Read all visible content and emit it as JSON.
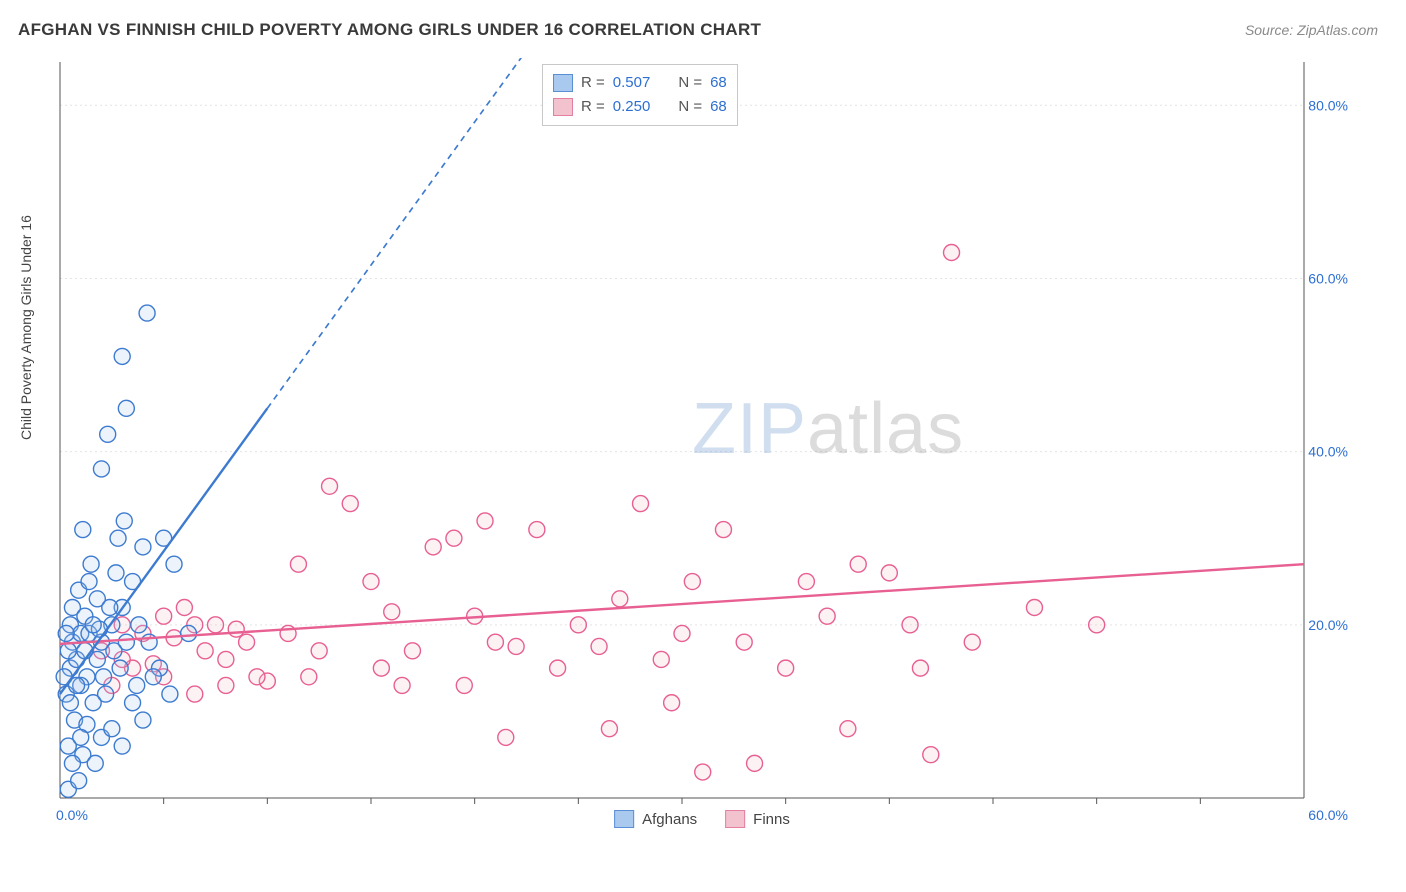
{
  "header": {
    "title": "AFGHAN VS FINNISH CHILD POVERTY AMONG GIRLS UNDER 16 CORRELATION CHART",
    "source": "Source: ZipAtlas.com"
  },
  "ylabel": "Child Poverty Among Girls Under 16",
  "watermark": {
    "part1": "ZIP",
    "part2": "atlas"
  },
  "chart": {
    "type": "scatter",
    "background_color": "#ffffff",
    "grid_color": "#e4e4e4",
    "axis_color": "#555555",
    "tick_label_color": "#2d6fd2",
    "xlim": [
      0,
      60
    ],
    "ylim": [
      0,
      85
    ],
    "x_ticks": [
      0,
      30,
      60
    ],
    "x_tick_labels": [
      "0.0%",
      "",
      "60.0%"
    ],
    "x_minor_ticks": [
      5,
      10,
      15,
      20,
      25,
      30,
      35,
      40,
      45,
      50,
      55
    ],
    "y_ticks": [
      20,
      40,
      60,
      80
    ],
    "y_tick_labels": [
      "20.0%",
      "40.0%",
      "60.0%",
      "80.0%"
    ],
    "marker_radius": 8,
    "marker_stroke_width": 1.4,
    "marker_fill_opacity": 0.22,
    "trend_line_width": 2.4,
    "trend_dash_pattern": "6,5"
  },
  "stats_legend": {
    "rows": [
      {
        "swatch_fill": "#a9c9ef",
        "swatch_stroke": "#5b8fd4",
        "r": "0.507",
        "n": "68"
      },
      {
        "swatch_fill": "#f3c2cf",
        "swatch_stroke": "#e37fa0",
        "r": "0.250",
        "n": "68"
      }
    ],
    "r_label": "R =",
    "n_label": "N ="
  },
  "bottom_legend": {
    "items": [
      {
        "swatch_fill": "#a9c9ef",
        "swatch_stroke": "#5b8fd4",
        "label": "Afghans"
      },
      {
        "swatch_fill": "#f3c2cf",
        "swatch_stroke": "#e37fa0",
        "label": "Finns"
      }
    ]
  },
  "series": {
    "afghans": {
      "color_stroke": "#3d7bd0",
      "color_fill": "#a9c9ef",
      "trend": {
        "x1": 0,
        "y1": 12,
        "x2": 10,
        "y2": 45,
        "dash_x2": 23,
        "dash_y2": 88
      },
      "points": [
        [
          0.4,
          1
        ],
        [
          0.3,
          12
        ],
        [
          0.5,
          15
        ],
        [
          0.6,
          18
        ],
        [
          0.8,
          16
        ],
        [
          0.5,
          20
        ],
        [
          1.0,
          19
        ],
        [
          0.6,
          22
        ],
        [
          0.9,
          24
        ],
        [
          1.2,
          21
        ],
        [
          0.4,
          17
        ],
        [
          1.3,
          14
        ],
        [
          1.4,
          19
        ],
        [
          1.5,
          27
        ],
        [
          1.1,
          31
        ],
        [
          0.7,
          9
        ],
        [
          1.0,
          13
        ],
        [
          2.0,
          18
        ],
        [
          1.8,
          16
        ],
        [
          2.2,
          12
        ],
        [
          2.5,
          20
        ],
        [
          2.7,
          26
        ],
        [
          3.0,
          22
        ],
        [
          2.8,
          30
        ],
        [
          3.5,
          25
        ],
        [
          3.2,
          18
        ],
        [
          3.8,
          20
        ],
        [
          4.0,
          29
        ],
        [
          3.1,
          32
        ],
        [
          2.0,
          38
        ],
        [
          2.3,
          42
        ],
        [
          3.2,
          45
        ],
        [
          3.0,
          51
        ],
        [
          4.2,
          56
        ],
        [
          5.0,
          30
        ],
        [
          5.5,
          27
        ],
        [
          6.2,
          19
        ],
        [
          4.8,
          15
        ],
        [
          5.3,
          12
        ],
        [
          2.0,
          7
        ],
        [
          2.5,
          8
        ],
        [
          3.0,
          6
        ],
        [
          1.6,
          11
        ],
        [
          1.1,
          5
        ],
        [
          0.9,
          2
        ],
        [
          1.7,
          4
        ],
        [
          2.1,
          14
        ],
        [
          1.3,
          8.5
        ],
        [
          0.4,
          6
        ],
        [
          0.6,
          4
        ],
        [
          1.0,
          7
        ],
        [
          3.5,
          11
        ],
        [
          4.0,
          9
        ],
        [
          4.5,
          14
        ],
        [
          1.8,
          23
        ],
        [
          1.4,
          25
        ],
        [
          2.6,
          17
        ],
        [
          2.9,
          15
        ],
        [
          0.3,
          19
        ],
        [
          0.2,
          14
        ],
        [
          0.5,
          11
        ],
        [
          0.8,
          13
        ],
        [
          1.9,
          19.5
        ],
        [
          2.4,
          22
        ],
        [
          1.2,
          17
        ],
        [
          1.6,
          20
        ],
        [
          4.3,
          18
        ],
        [
          3.7,
          13
        ]
      ]
    },
    "finns": {
      "color_stroke": "#e85f92",
      "color_fill": "#f3c2cf",
      "trend": {
        "x1": 0,
        "y1": 17.8,
        "x2": 60,
        "y2": 27
      },
      "points": [
        [
          2,
          17
        ],
        [
          3,
          20
        ],
        [
          3.5,
          15
        ],
        [
          4,
          19
        ],
        [
          5,
          14
        ],
        [
          5.5,
          18.5
        ],
        [
          6,
          22
        ],
        [
          6.5,
          12
        ],
        [
          7,
          17
        ],
        [
          8,
          13
        ],
        [
          8.5,
          19.5
        ],
        [
          10,
          13.5
        ],
        [
          11,
          19
        ],
        [
          11.5,
          27
        ],
        [
          12,
          14
        ],
        [
          12.5,
          17
        ],
        [
          13,
          36
        ],
        [
          14,
          34
        ],
        [
          15,
          25
        ],
        [
          15.5,
          15
        ],
        [
          16,
          21.5
        ],
        [
          16.5,
          13
        ],
        [
          17,
          17
        ],
        [
          18,
          29
        ],
        [
          19,
          30
        ],
        [
          19.5,
          13
        ],
        [
          20,
          21
        ],
        [
          20.5,
          32
        ],
        [
          21,
          18
        ],
        [
          21.5,
          7
        ],
        [
          22,
          17.5
        ],
        [
          23,
          31
        ],
        [
          24,
          15
        ],
        [
          25,
          20
        ],
        [
          26,
          17.5
        ],
        [
          26.5,
          8
        ],
        [
          27,
          23
        ],
        [
          28,
          34
        ],
        [
          29,
          16
        ],
        [
          29.5,
          11
        ],
        [
          30,
          19
        ],
        [
          30.5,
          25
        ],
        [
          31,
          3
        ],
        [
          32,
          31
        ],
        [
          33,
          18
        ],
        [
          33.5,
          4
        ],
        [
          35,
          15
        ],
        [
          36,
          25
        ],
        [
          37,
          21
        ],
        [
          38,
          8
        ],
        [
          38.5,
          27
        ],
        [
          40,
          26
        ],
        [
          41,
          20
        ],
        [
          41.5,
          15
        ],
        [
          42,
          5
        ],
        [
          43,
          63
        ],
        [
          44,
          18
        ],
        [
          47,
          22
        ],
        [
          50,
          20
        ],
        [
          5,
          21
        ],
        [
          6.5,
          20
        ],
        [
          8,
          16
        ],
        [
          9,
          18
        ],
        [
          3,
          16
        ],
        [
          4.5,
          15.5
        ],
        [
          2.5,
          13
        ],
        [
          7.5,
          20
        ],
        [
          9.5,
          14
        ]
      ]
    }
  }
}
